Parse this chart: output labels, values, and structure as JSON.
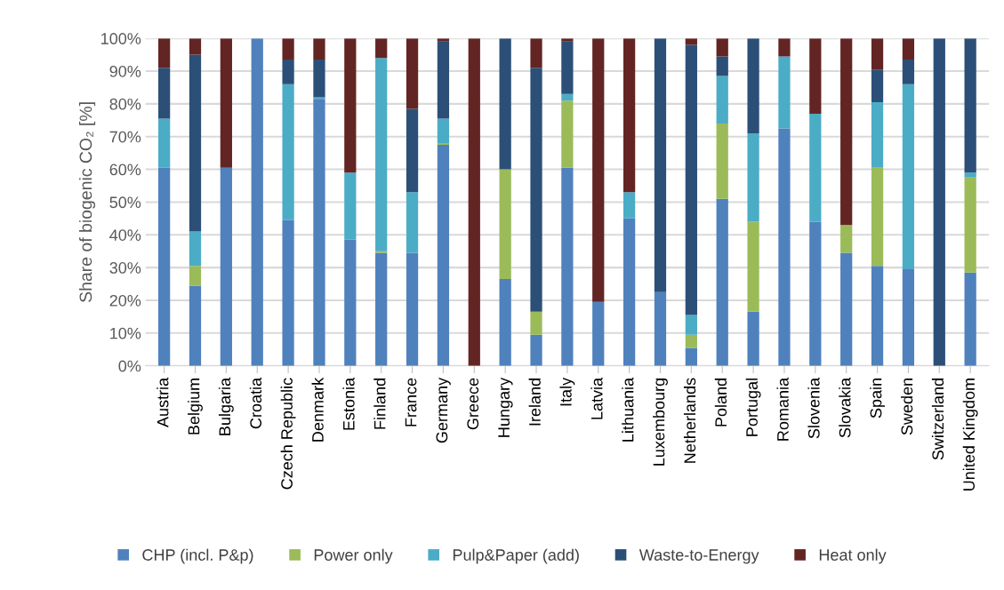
{
  "chart_data": {
    "type": "bar",
    "stacked": true,
    "ylabel": "Share of biogenic CO₂ [%]",
    "categories": [
      "Austria",
      "Belgium",
      "Bulgaria",
      "Croatia",
      "Czech Republic",
      "Denmark",
      "Estonia",
      "Finland",
      "France",
      "Germany",
      "Greece",
      "Hungary",
      "Ireland",
      "Italy",
      "Latvia",
      "Lithuania",
      "Luxembourg",
      "Netherlands",
      "Poland",
      "Portugal",
      "Romania",
      "Slovenia",
      "Slovakia",
      "Spain",
      "Sweden",
      "Switzerland",
      "United Kingdom"
    ],
    "series": [
      {
        "name": "CHP (incl. P&p)",
        "color": "#4f81bd",
        "values": [
          60.5,
          24.5,
          60.5,
          100,
          44.5,
          81.5,
          38.5,
          34.5,
          34.5,
          67.5,
          0,
          26.5,
          9.5,
          60.5,
          19.5,
          45,
          22.5,
          5.5,
          51,
          16.5,
          72.5,
          44,
          34.5,
          30.5,
          29.5,
          0,
          28.5
        ]
      },
      {
        "name": "Power only",
        "color": "#9bbb59",
        "values": [
          0,
          6,
          0,
          0,
          0,
          0,
          0,
          0.5,
          0,
          0.5,
          0,
          33.5,
          7,
          20.5,
          0,
          0,
          0,
          4,
          23,
          27.5,
          0,
          0,
          8.5,
          30,
          0,
          0,
          29
        ]
      },
      {
        "name": "Pulp&Paper (add)",
        "color": "#4bacc6",
        "values": [
          15,
          10.5,
          0,
          0,
          41.5,
          0.5,
          20.5,
          59,
          18.5,
          7.5,
          0,
          0,
          0,
          2,
          0,
          8,
          0,
          6,
          14.5,
          27,
          22,
          33,
          0,
          20,
          56.5,
          0,
          1.5
        ]
      },
      {
        "name": "Waste-to-Energy",
        "color": "#2c4f77",
        "values": [
          15.5,
          54,
          0,
          0,
          7.5,
          11.5,
          0,
          0,
          25.5,
          23.5,
          0,
          40,
          74.5,
          16,
          0,
          0,
          77.5,
          82.5,
          6,
          29,
          0,
          0,
          0,
          10,
          7.5,
          100,
          41
        ]
      },
      {
        "name": "Heat only",
        "color": "#632523",
        "values": [
          9,
          5,
          39.5,
          0,
          6.5,
          6.5,
          41,
          6,
          21.5,
          1,
          100,
          0,
          9,
          1,
          80.5,
          47,
          0,
          2,
          5.5,
          0,
          5.5,
          23,
          57,
          9.5,
          6.5,
          0,
          0
        ]
      }
    ],
    "ylim": [
      0,
      100
    ],
    "yticks": [
      {
        "value": 0,
        "label": "0%"
      },
      {
        "value": 10,
        "label": "10%"
      },
      {
        "value": 20,
        "label": "20%"
      },
      {
        "value": 30,
        "label": "30%"
      },
      {
        "value": 40,
        "label": "40%"
      },
      {
        "value": 50,
        "label": "50%"
      },
      {
        "value": 60,
        "label": "60%"
      },
      {
        "value": 70,
        "label": "70%"
      },
      {
        "value": 80,
        "label": "80%"
      },
      {
        "value": 90,
        "label": "90%"
      },
      {
        "value": 100,
        "label": "100%"
      }
    ],
    "grid": "y",
    "legend": "bottom"
  }
}
